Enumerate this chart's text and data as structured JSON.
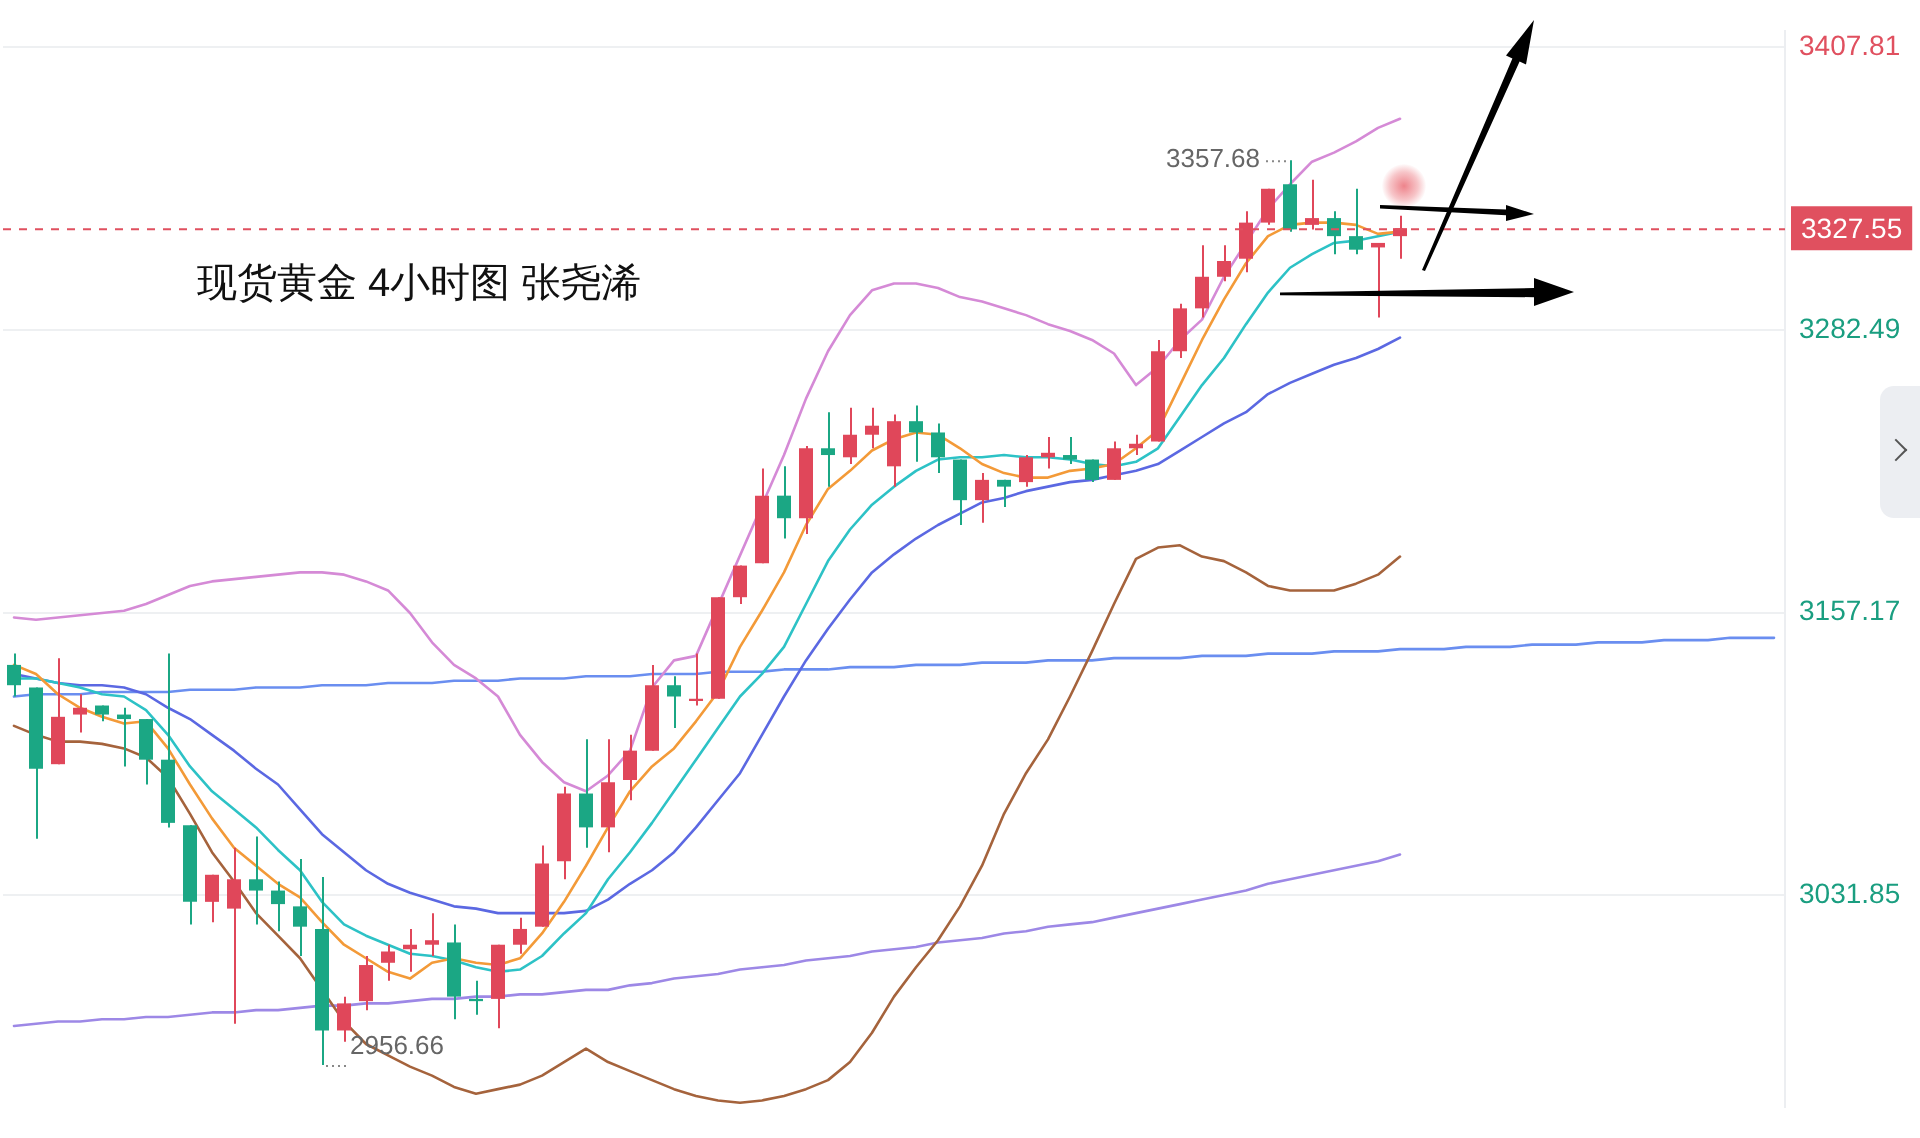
{
  "chart_data": {
    "type": "candlestick",
    "title": "现货黄金 4小时图 张尧浠",
    "categories": [
      null,
      null,
      null,
      null,
      null,
      null,
      null,
      null,
      null,
      null,
      null,
      null,
      null,
      null,
      null,
      null,
      null,
      null,
      null,
      null,
      null,
      null,
      null,
      null,
      null,
      null,
      null,
      null,
      null,
      null,
      null,
      null,
      null,
      null,
      null,
      null,
      null,
      null,
      null,
      null,
      null,
      null,
      null,
      null,
      null,
      null,
      null,
      null,
      null,
      null,
      null,
      null,
      null,
      null,
      null,
      null,
      null,
      null,
      null,
      null,
      null,
      null,
      null,
      null,
      null,
      null,
      null,
      null,
      null,
      null,
      null,
      null,
      null,
      null,
      null,
      null,
      null,
      null,
      null,
      null,
      null
    ],
    "ohlc": [
      [
        3134,
        3139,
        3120,
        3125
      ],
      [
        3124,
        3124,
        3057,
        3088
      ],
      [
        3090,
        3137,
        3090,
        3111
      ],
      [
        3112,
        3121,
        3104,
        3115
      ],
      [
        3116,
        3116,
        3109,
        3112
      ],
      [
        3112,
        3115,
        3089,
        3110
      ],
      [
        3110,
        3110,
        3081,
        3092
      ],
      [
        3092,
        3139,
        3062,
        3064
      ],
      [
        3063,
        3063,
        3019,
        3029
      ],
      [
        3029,
        3041,
        3020,
        3041
      ],
      [
        3026,
        3053,
        2975,
        3039
      ],
      [
        3039,
        3058,
        3019,
        3034
      ],
      [
        3034,
        3038,
        3016,
        3028
      ],
      [
        3027,
        3048,
        3005,
        3018
      ],
      [
        3017,
        3040,
        2956.66,
        2972
      ],
      [
        2972,
        2987,
        2967,
        2984
      ],
      [
        2985,
        3005,
        2981,
        3001
      ],
      [
        3002,
        3010,
        2994,
        3007
      ],
      [
        3008,
        3017,
        2998,
        3010
      ],
      [
        3010,
        3024,
        3005,
        3012
      ],
      [
        3011,
        3019,
        2977,
        2987
      ],
      [
        2986,
        2994,
        2979,
        2985
      ],
      [
        2986,
        3010,
        2973,
        3010
      ],
      [
        3010,
        3022,
        3006,
        3017
      ],
      [
        3018,
        3054,
        3018,
        3046
      ],
      [
        3047,
        3080,
        3039,
        3077
      ],
      [
        3077,
        3101,
        3053,
        3062
      ],
      [
        3062,
        3101,
        3051,
        3082
      ],
      [
        3083,
        3103,
        3074,
        3096
      ],
      [
        3096,
        3134,
        3096,
        3125
      ],
      [
        3125,
        3129,
        3106,
        3120
      ],
      [
        3118,
        3139,
        3116,
        3119
      ],
      [
        3119,
        3164,
        3119,
        3164
      ],
      [
        3164,
        3178,
        3161,
        3178
      ],
      [
        3179,
        3221,
        3179,
        3209
      ],
      [
        3209,
        3222,
        3190,
        3199
      ],
      [
        3199,
        3231,
        3192,
        3230
      ],
      [
        3230,
        3246,
        3213,
        3227
      ],
      [
        3226,
        3248,
        3223,
        3236
      ],
      [
        3236,
        3248,
        3230,
        3240
      ],
      [
        3222,
        3245,
        3213,
        3242
      ],
      [
        3242,
        3249,
        3224,
        3237
      ],
      [
        3237,
        3241,
        3219,
        3226
      ],
      [
        3225,
        3225,
        3196,
        3207
      ],
      [
        3207,
        3219,
        3197,
        3216
      ],
      [
        3216,
        3216,
        3204,
        3213
      ],
      [
        3215,
        3227,
        3213,
        3226
      ],
      [
        3226,
        3235,
        3221,
        3228
      ],
      [
        3227,
        3235,
        3223,
        3225
      ],
      [
        3225,
        3225,
        3215,
        3216
      ],
      [
        3216,
        3233,
        3216,
        3230
      ],
      [
        3230,
        3236,
        3227,
        3232
      ],
      [
        3233,
        3278,
        3233,
        3273
      ],
      [
        3273,
        3294,
        3270,
        3292
      ],
      [
        3292,
        3320,
        3288,
        3306
      ],
      [
        3306,
        3320,
        3304,
        3313
      ],
      [
        3314,
        3335,
        3308,
        3330
      ],
      [
        3330,
        3345,
        3329,
        3345
      ],
      [
        3347,
        3357.68,
        3326,
        3327
      ],
      [
        3329,
        3349,
        3327,
        3332
      ],
      [
        3332,
        3335,
        3316,
        3324
      ],
      [
        3324,
        3345,
        3316,
        3318
      ],
      [
        3319,
        3321,
        3288,
        3321
      ],
      [
        3324,
        3333,
        3314,
        3327.55
      ],
      null,
      null,
      null,
      null,
      null,
      null,
      null,
      null,
      null,
      null,
      null,
      null,
      null,
      null,
      null,
      null,
      null
    ],
    "colors": [
      "#1ba784",
      "#1ba784",
      "#e0475a",
      "#e0475a",
      "#1ba784",
      "#1ba784",
      "#1ba784",
      "#1ba784",
      "#1ba784",
      "#e0475a",
      "#e0475a",
      "#1ba784",
      "#1ba784",
      "#1ba784",
      "#1ba784",
      "#e0475a",
      "#e0475a",
      "#e0475a",
      "#e0475a",
      "#e0475a",
      "#1ba784",
      "#1ba784",
      "#e0475a",
      "#e0475a",
      "#e0475a",
      "#e0475a",
      "#1ba784",
      "#e0475a",
      "#e0475a",
      "#e0475a",
      "#1ba784",
      "#e0475a",
      "#e0475a",
      "#e0475a",
      "#e0475a",
      "#1ba784",
      "#e0475a",
      "#1ba784",
      "#e0475a",
      "#e0475a",
      "#e0475a",
      "#1ba784",
      "#1ba784",
      "#1ba784",
      "#e0475a",
      "#1ba784",
      "#e0475a",
      "#e0475a",
      "#1ba784",
      "#1ba784",
      "#e0475a",
      "#e0475a",
      "#e0475a",
      "#e0475a",
      "#e0475a",
      "#e0475a",
      "#e0475a",
      "#e0475a",
      "#1ba784",
      "#e0475a",
      "#1ba784",
      "#1ba784",
      "#e0475a",
      "#e0475a",
      null,
      null,
      null,
      null,
      null,
      null,
      null,
      null,
      null,
      null,
      null,
      null,
      null,
      null,
      null,
      null,
      null
    ],
    "series": [
      {
        "type": "line",
        "color": "#f39a38",
        "values": [
          3134,
          3130,
          3121,
          3115,
          3111,
          3108,
          3109,
          3097,
          3081,
          3066,
          3053,
          3045,
          3037,
          3031,
          3020,
          3010,
          3004,
          2998,
          2995,
          3002,
          3004,
          3002,
          3001,
          3004,
          3015,
          3029,
          3045,
          3062,
          3078,
          3089,
          3097,
          3109,
          3122,
          3142,
          3158,
          3175,
          3196,
          3212,
          3220,
          3229,
          3234,
          3237,
          3236,
          3230,
          3223,
          3219,
          3217,
          3217,
          3220,
          3221,
          3223,
          3230,
          3238,
          3258,
          3278,
          3296,
          3312,
          3324,
          3329,
          3330,
          3330,
          3329,
          3325,
          3326,
          null,
          null,
          null,
          null,
          null,
          null,
          null,
          null,
          null,
          null,
          null,
          null,
          null,
          null,
          null,
          null,
          null
        ]
      },
      {
        "type": "line",
        "color": "#2dc2c6",
        "values": [
          3128,
          3128,
          3126,
          3124,
          3121,
          3120,
          3114,
          3103,
          3089,
          3078,
          3070,
          3062,
          3052,
          3043,
          3029,
          3019,
          3014,
          3010,
          3006,
          3005,
          3003,
          3000,
          2998,
          2999,
          3005,
          3015,
          3024,
          3039,
          3051,
          3064,
          3078,
          3092,
          3106,
          3120,
          3130,
          3142,
          3161,
          3180,
          3194,
          3205,
          3213,
          3220,
          3225,
          3226,
          3226,
          3227,
          3226,
          3226,
          3225,
          3223,
          3222,
          3224,
          3230,
          3244,
          3258,
          3270,
          3285,
          3299,
          3310,
          3316,
          3321,
          3322,
          3324,
          3326,
          null,
          null,
          null,
          null,
          null,
          null,
          null,
          null,
          null,
          null,
          null,
          null,
          null,
          null,
          null,
          null,
          null
        ]
      },
      {
        "type": "line",
        "color": "#5b68e2",
        "values": [
          3130,
          3128,
          3126,
          3125,
          3125,
          3124,
          3121,
          3115,
          3110,
          3103,
          3096,
          3088,
          3081,
          3070,
          3059,
          3051,
          3043,
          3037,
          3033,
          3030,
          3027,
          3026,
          3024,
          3024,
          3024,
          3024,
          3025,
          3030,
          3037,
          3043,
          3051,
          3062,
          3074,
          3086,
          3103,
          3120,
          3136,
          3150,
          3163,
          3175,
          3183,
          3190,
          3196,
          3201,
          3206,
          3208,
          3211,
          3213,
          3215,
          3216,
          3218,
          3220,
          3223,
          3229,
          3235,
          3241,
          3246,
          3254,
          3259,
          3263,
          3267,
          3270,
          3274,
          3279,
          null,
          null,
          null,
          null,
          null,
          null,
          null,
          null,
          null,
          null,
          null,
          null,
          null,
          null,
          null,
          null,
          null
        ]
      },
      {
        "type": "line",
        "color": "#d58ad6",
        "values": [
          3155,
          3154,
          3155,
          3156,
          3157,
          3158,
          3161,
          3165,
          3169,
          3171,
          3172,
          3173,
          3174,
          3175,
          3175,
          3174,
          3171,
          3167,
          3157,
          3144,
          3134,
          3128,
          3120,
          3103,
          3091,
          3082,
          3078,
          3085,
          3096,
          3124,
          3136,
          3138,
          null,
          null,
          null,
          3227,
          3252,
          3273,
          3289,
          3300,
          3303,
          3303,
          3301,
          3297,
          3295,
          3292,
          3289,
          3285,
          3282,
          3278,
          3272,
          3258,
          3266,
          3278,
          3287,
          3306,
          null,
          3336,
          3347,
          3357,
          3361,
          3366,
          3372,
          3376,
          null,
          null,
          null,
          null,
          null,
          null,
          null,
          null,
          null,
          null,
          null,
          null,
          null,
          null,
          null,
          null,
          null
        ]
      },
      {
        "type": "line",
        "color": "#a5633c",
        "values": [
          3107,
          3103,
          3100,
          3100,
          3099,
          3097,
          3093,
          3084,
          3068,
          3051,
          3038,
          3024,
          3014,
          3004,
          null,
          2976,
          2966,
          2961,
          2956,
          2952,
          2947,
          2944,
          2946,
          2948,
          2952,
          2958,
          2964,
          2958,
          2954,
          2950,
          2946,
          2943,
          2941,
          2940,
          2941,
          2943,
          2946,
          2950,
          2958,
          2971,
          2987,
          3000,
          3012,
          3027,
          3045,
          3068,
          3086,
          3101,
          3120,
          3140,
          3161,
          3181,
          3186,
          3187,
          3182,
          3180,
          3175,
          3169,
          3167,
          3167,
          3167,
          3170,
          3174,
          3182,
          null,
          null,
          null,
          null,
          null,
          null,
          null,
          null,
          null,
          null,
          null,
          null,
          null,
          null,
          null,
          null,
          null
        ]
      },
      {
        "type": "line",
        "color": "#9d88e6",
        "values": [
          2974,
          2975,
          2976,
          2976,
          2977,
          2977,
          2978,
          2978,
          2979,
          2980,
          2980,
          2981,
          2981,
          2982,
          2983,
          2983,
          2984,
          2984,
          2985,
          2986,
          2986,
          2987,
          2987,
          2988,
          2988,
          2989,
          2990,
          2990,
          2992,
          2993,
          2995,
          2996,
          2997,
          2999,
          3000,
          3001,
          3003,
          3004,
          3005,
          3007,
          3008,
          3009,
          3011,
          3012,
          3013,
          3015,
          3016,
          3018,
          3019,
          3020,
          3022,
          3024,
          3026,
          3028,
          3030,
          3032,
          3034,
          3037,
          3039,
          3041,
          3043,
          3045,
          3047,
          3050,
          null,
          null,
          null,
          null,
          null,
          null,
          null,
          null,
          null,
          null,
          null,
          null,
          null,
          null,
          null,
          null,
          null
        ]
      },
      {
        "type": "line",
        "color": "#6a8ef0",
        "values": [
          3120,
          3121,
          3121,
          3121,
          3122,
          3122,
          3122,
          3122,
          3123,
          3123,
          3123,
          3124,
          3124,
          3124,
          3125,
          3125,
          3125,
          3126,
          3126,
          3126,
          3127,
          3127,
          3127,
          3128,
          3128,
          3128,
          3129,
          3129,
          3129,
          3130,
          3130,
          3130,
          3131,
          3131,
          3131,
          3132,
          3132,
          3132,
          3133,
          3133,
          3133,
          3134,
          3134,
          3134,
          3135,
          3135,
          3135,
          3136,
          3136,
          3136,
          3137,
          3137,
          3137,
          3137,
          3138,
          3138,
          3138,
          3139,
          3139,
          3139,
          3140,
          3140,
          3140,
          3141,
          3141,
          3141,
          3142,
          3142,
          3142,
          3143,
          3143,
          3143,
          3144,
          3144,
          3144,
          3145,
          3145,
          3145,
          3146,
          3146,
          3146
        ]
      }
    ],
    "ylim": [
      2938,
      3415
    ],
    "yticks": [
      3031.85,
      3157.17,
      3282.49,
      3407.81
    ],
    "ref_lines": [
      {
        "axis": "y",
        "value": 3327.55,
        "label": "3327.55",
        "color": "#e0505f",
        "line_style": "dashed"
      }
    ],
    "annotations": [
      "3357.68",
      "2956.66"
    ],
    "grid": "y",
    "tick_labels": "y",
    "marker": "none",
    "line_style": "solid"
  }
}
